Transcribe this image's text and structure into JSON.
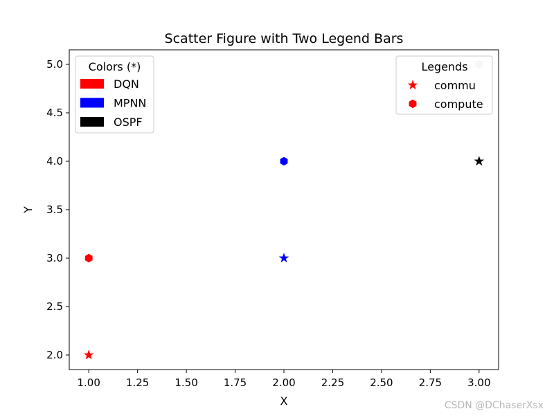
{
  "chart_data": {
    "type": "scatter",
    "title": "Scatter Figure with Two Legend Bars",
    "xlabel": "X",
    "ylabel": "Y",
    "xlim": [
      0.9,
      3.1
    ],
    "ylim": [
      1.85,
      5.15
    ],
    "x_ticks": [
      "1.00",
      "1.25",
      "1.50",
      "1.75",
      "2.00",
      "2.25",
      "2.50",
      "2.75",
      "3.00"
    ],
    "y_ticks": [
      "2.0",
      "2.5",
      "3.0",
      "3.5",
      "4.0",
      "4.5",
      "5.0"
    ],
    "grid": false,
    "points": [
      {
        "x": 1,
        "y": 2,
        "marker": "star",
        "color": "#ff0000"
      },
      {
        "x": 1,
        "y": 3,
        "marker": "hexagon",
        "color": "#ff0000"
      },
      {
        "x": 2,
        "y": 3,
        "marker": "star",
        "color": "#0000ff"
      },
      {
        "x": 2,
        "y": 4,
        "marker": "hexagon",
        "color": "#0000ff"
      },
      {
        "x": 3,
        "y": 4,
        "marker": "star",
        "color": "#000000"
      },
      {
        "x": 3,
        "y": 5,
        "marker": "hexagon",
        "color": "#c8c8c8"
      }
    ],
    "legend_colors": {
      "title": "Colors (*)",
      "placement": "upper-left",
      "entries": [
        {
          "label": "DQN",
          "color": "#ff0000"
        },
        {
          "label": "MPNN",
          "color": "#0000ff"
        },
        {
          "label": "OSPF",
          "color": "#000000"
        }
      ]
    },
    "legend_markers": {
      "title": "Legends",
      "placement": "upper-right",
      "entries": [
        {
          "label": "commu",
          "marker": "star",
          "color": "#ff0000"
        },
        {
          "label": "compute",
          "marker": "hexagon",
          "color": "#ff0000"
        }
      ]
    }
  },
  "watermark": "CSDN @DChaserXsx"
}
